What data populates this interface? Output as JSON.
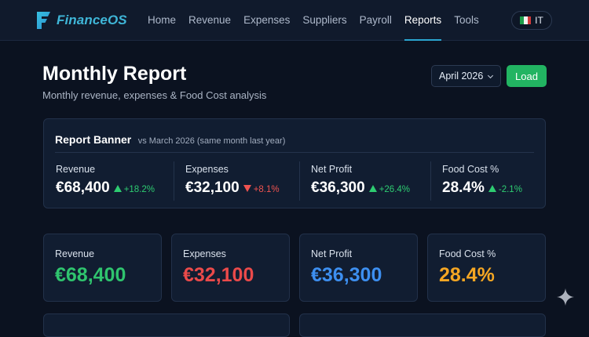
{
  "app": {
    "name": "FinanceOS"
  },
  "nav": {
    "items": [
      {
        "label": "Home",
        "active": false
      },
      {
        "label": "Revenue",
        "active": false
      },
      {
        "label": "Expenses",
        "active": false
      },
      {
        "label": "Suppliers",
        "active": false
      },
      {
        "label": "Payroll",
        "active": false
      },
      {
        "label": "Reports",
        "active": true
      },
      {
        "label": "Tools",
        "active": false
      }
    ],
    "language": {
      "code": "IT",
      "flag_icon": "italy-flag-icon"
    }
  },
  "page": {
    "title": "Monthly Report",
    "subtitle": "Monthly revenue, expenses & Food Cost analysis"
  },
  "controls": {
    "month_select": {
      "value": "April 2026"
    },
    "load_label": "Load"
  },
  "banner": {
    "title": "Report Banner",
    "comparison": "vs March 2026 (same month last year)",
    "metrics": [
      {
        "label": "Revenue",
        "value": "€68,400",
        "change": "+18.2%",
        "direction": "up"
      },
      {
        "label": "Expenses",
        "value": "€32,100",
        "change": "+8.1%",
        "direction": "down"
      },
      {
        "label": "Net Profit",
        "value": "€36,300",
        "change": "+26.4%",
        "direction": "up"
      },
      {
        "label": "Food Cost %",
        "value": "28.4%",
        "change": "-2.1%",
        "direction": "up"
      }
    ]
  },
  "kpis": [
    {
      "label": "Revenue",
      "value": "€68,400",
      "color": "#2fc46e"
    },
    {
      "label": "Expenses",
      "value": "€32,100",
      "color": "#ea4a4a"
    },
    {
      "label": "Net Profit",
      "value": "€36,300",
      "color": "#3d8ff0"
    },
    {
      "label": "Food Cost %",
      "value": "28.4%",
      "color": "#f5a623"
    }
  ],
  "colors": {
    "accent": "#2ba5cf",
    "positive": "#2ecc71",
    "negative": "#ef5350",
    "primary_button": "#22b462"
  }
}
